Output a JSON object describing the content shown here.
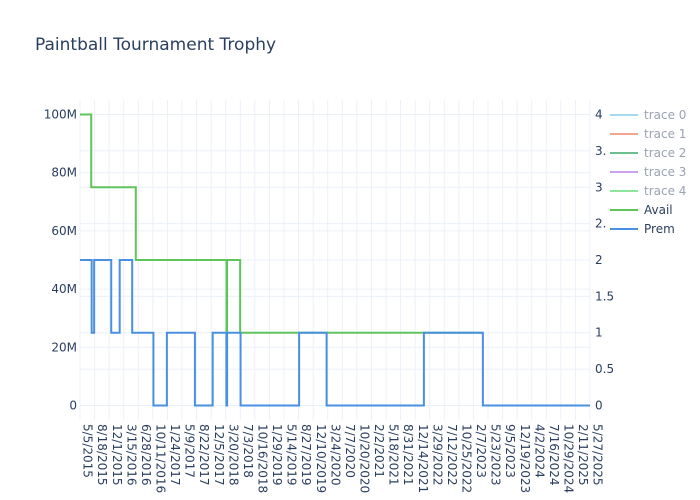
{
  "chart_data": {
    "type": "line",
    "title": "Paintball Tournament Trophy",
    "grid": true,
    "legend_position": "right",
    "y_left": {
      "range": [
        -5000000,
        105000000
      ],
      "ticks": [
        0,
        20000000,
        40000000,
        60000000,
        80000000,
        100000000
      ],
      "tick_labels": [
        "0",
        "20M",
        "40M",
        "60M",
        "80M",
        "100M"
      ]
    },
    "y_right": {
      "range": [
        -0.2,
        4.2
      ],
      "ticks": [
        0,
        0.5,
        1,
        1.5,
        2,
        2.5,
        3,
        3.5,
        4
      ],
      "tick_labels": [
        "0",
        "0.5",
        "1",
        "1.5",
        "2",
        "2.",
        "3",
        "3.",
        "4"
      ]
    },
    "x_axis": {
      "range": [
        "2015-05-05",
        "2025-05-27"
      ],
      "tick_dates": [
        "2015-05-05",
        "2015-08-18",
        "2015-12-01",
        "2016-03-15",
        "2016-06-28",
        "2016-10-11",
        "2017-01-24",
        "2017-05-09",
        "2017-08-22",
        "2017-12-05",
        "2018-03-20",
        "2018-07-03",
        "2018-10-16",
        "2019-01-29",
        "2019-05-14",
        "2019-08-27",
        "2019-12-10",
        "2020-03-24",
        "2020-07-07",
        "2020-10-20",
        "2021-02-02",
        "2021-05-18",
        "2021-08-31",
        "2021-12-14",
        "2022-03-29",
        "2022-07-12",
        "2022-10-25",
        "2023-02-07",
        "2023-05-23",
        "2023-09-05",
        "2023-12-19",
        "2024-04-02",
        "2024-07-16",
        "2024-10-29",
        "2025-02-11",
        "2025-05-27"
      ],
      "tick_labels": [
        "5/5/2015",
        "8/18/2015",
        "12/1/2015",
        "3/15/2016",
        "6/28/2016",
        "10/11/2016",
        "1/24/2017",
        "5/9/2017",
        "8/22/2017",
        "12/5/2017",
        "3/20/2018",
        "7/3/2018",
        "10/16/2018",
        "1/29/2019",
        "5/14/2019",
        "8/27/2019",
        "12/10/2019",
        "3/24/2020",
        "7/7/2020",
        "10/20/2020",
        "2/2/2021",
        "5/18/2021",
        "8/31/2021",
        "12/14/2021",
        "3/29/2022",
        "7/12/2022",
        "10/25/2022",
        "2/7/2023",
        "5/23/2023",
        "9/5/2023",
        "12/19/2023",
        "4/2/2024",
        "7/16/2024",
        "10/29/2024",
        "2/11/2025",
        "5/27/2025"
      ]
    },
    "series": [
      {
        "name": "trace 0",
        "color": "#a6d8f0",
        "legend_only": true,
        "points": []
      },
      {
        "name": "trace 1",
        "color": "#f4a58e",
        "legend_only": true,
        "points": []
      },
      {
        "name": "trace 2",
        "color": "#6cc08b",
        "legend_only": true,
        "points": []
      },
      {
        "name": "trace 3",
        "color": "#c9a3f2",
        "legend_only": true,
        "points": []
      },
      {
        "name": "trace 4",
        "color": "#8ee69a",
        "legend_only": true,
        "points": []
      },
      {
        "name": "Avail",
        "color": "#5ec55a",
        "axis": "right",
        "step": true,
        "points": [
          [
            "2015-05-05",
            4
          ],
          [
            "2015-07-25",
            3
          ],
          [
            "2016-06-10",
            2
          ],
          [
            "2018-03-26",
            1
          ],
          [
            "2018-03-30",
            2
          ],
          [
            "2018-07-02",
            1
          ],
          [
            "2023-04-16",
            1
          ]
        ]
      },
      {
        "name": "Prem",
        "color": "#4a90e2",
        "axis": "right",
        "step": true,
        "points": [
          [
            "2015-05-05",
            2
          ],
          [
            "2015-07-28",
            1
          ],
          [
            "2015-08-15",
            2
          ],
          [
            "2015-12-16",
            1
          ],
          [
            "2016-02-15",
            2
          ],
          [
            "2016-05-15",
            1
          ],
          [
            "2016-10-15",
            0
          ],
          [
            "2017-01-20",
            1
          ],
          [
            "2017-08-10",
            0
          ],
          [
            "2017-12-16",
            1
          ],
          [
            "2018-03-25",
            0
          ],
          [
            "2018-03-30",
            1
          ],
          [
            "2018-07-05",
            0
          ],
          [
            "2019-08-31",
            1
          ],
          [
            "2020-03-16",
            0
          ],
          [
            "2022-02-15",
            1
          ],
          [
            "2023-04-16",
            0
          ],
          [
            "2025-05-27",
            0
          ]
        ]
      }
    ]
  }
}
